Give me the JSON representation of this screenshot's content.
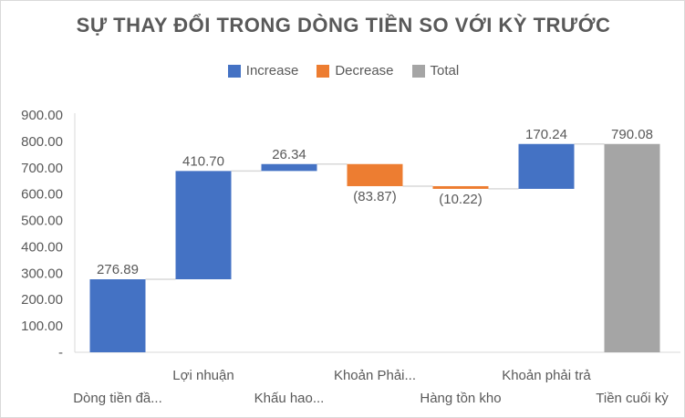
{
  "chart_data": {
    "type": "waterfall",
    "title": "SỰ THAY ĐỔI TRONG DÒNG TIỀN SO VỚI KỲ TRƯỚC",
    "legend": [
      {
        "name": "Increase",
        "color": "#4472C4"
      },
      {
        "name": "Decrease",
        "color": "#ED7D31"
      },
      {
        "name": "Total",
        "color": "#A5A5A5"
      }
    ],
    "legend_position": "top",
    "categories": [
      "Dòng tiền đầ...",
      "Lợi nhuận",
      "Khấu hao...",
      "Khoản Phải...",
      "Hàng tồn kho",
      "Khoản phải trả",
      "Tiền cuối kỳ"
    ],
    "values": [
      276.89,
      410.7,
      26.34,
      -83.87,
      -10.22,
      170.24,
      790.08
    ],
    "kinds": [
      "increase",
      "increase",
      "increase",
      "decrease",
      "decrease",
      "increase",
      "total"
    ],
    "data_labels": [
      "276.89",
      "410.70",
      "26.34",
      "(83.87)",
      "(10.22)",
      "170.24",
      "790.08"
    ],
    "ylim": [
      0,
      900
    ],
    "yticks": [
      "-",
      "100.00",
      "200.00",
      "300.00",
      "400.00",
      "500.00",
      "600.00",
      "700.00",
      "800.00",
      "900.00"
    ],
    "grid": false
  }
}
